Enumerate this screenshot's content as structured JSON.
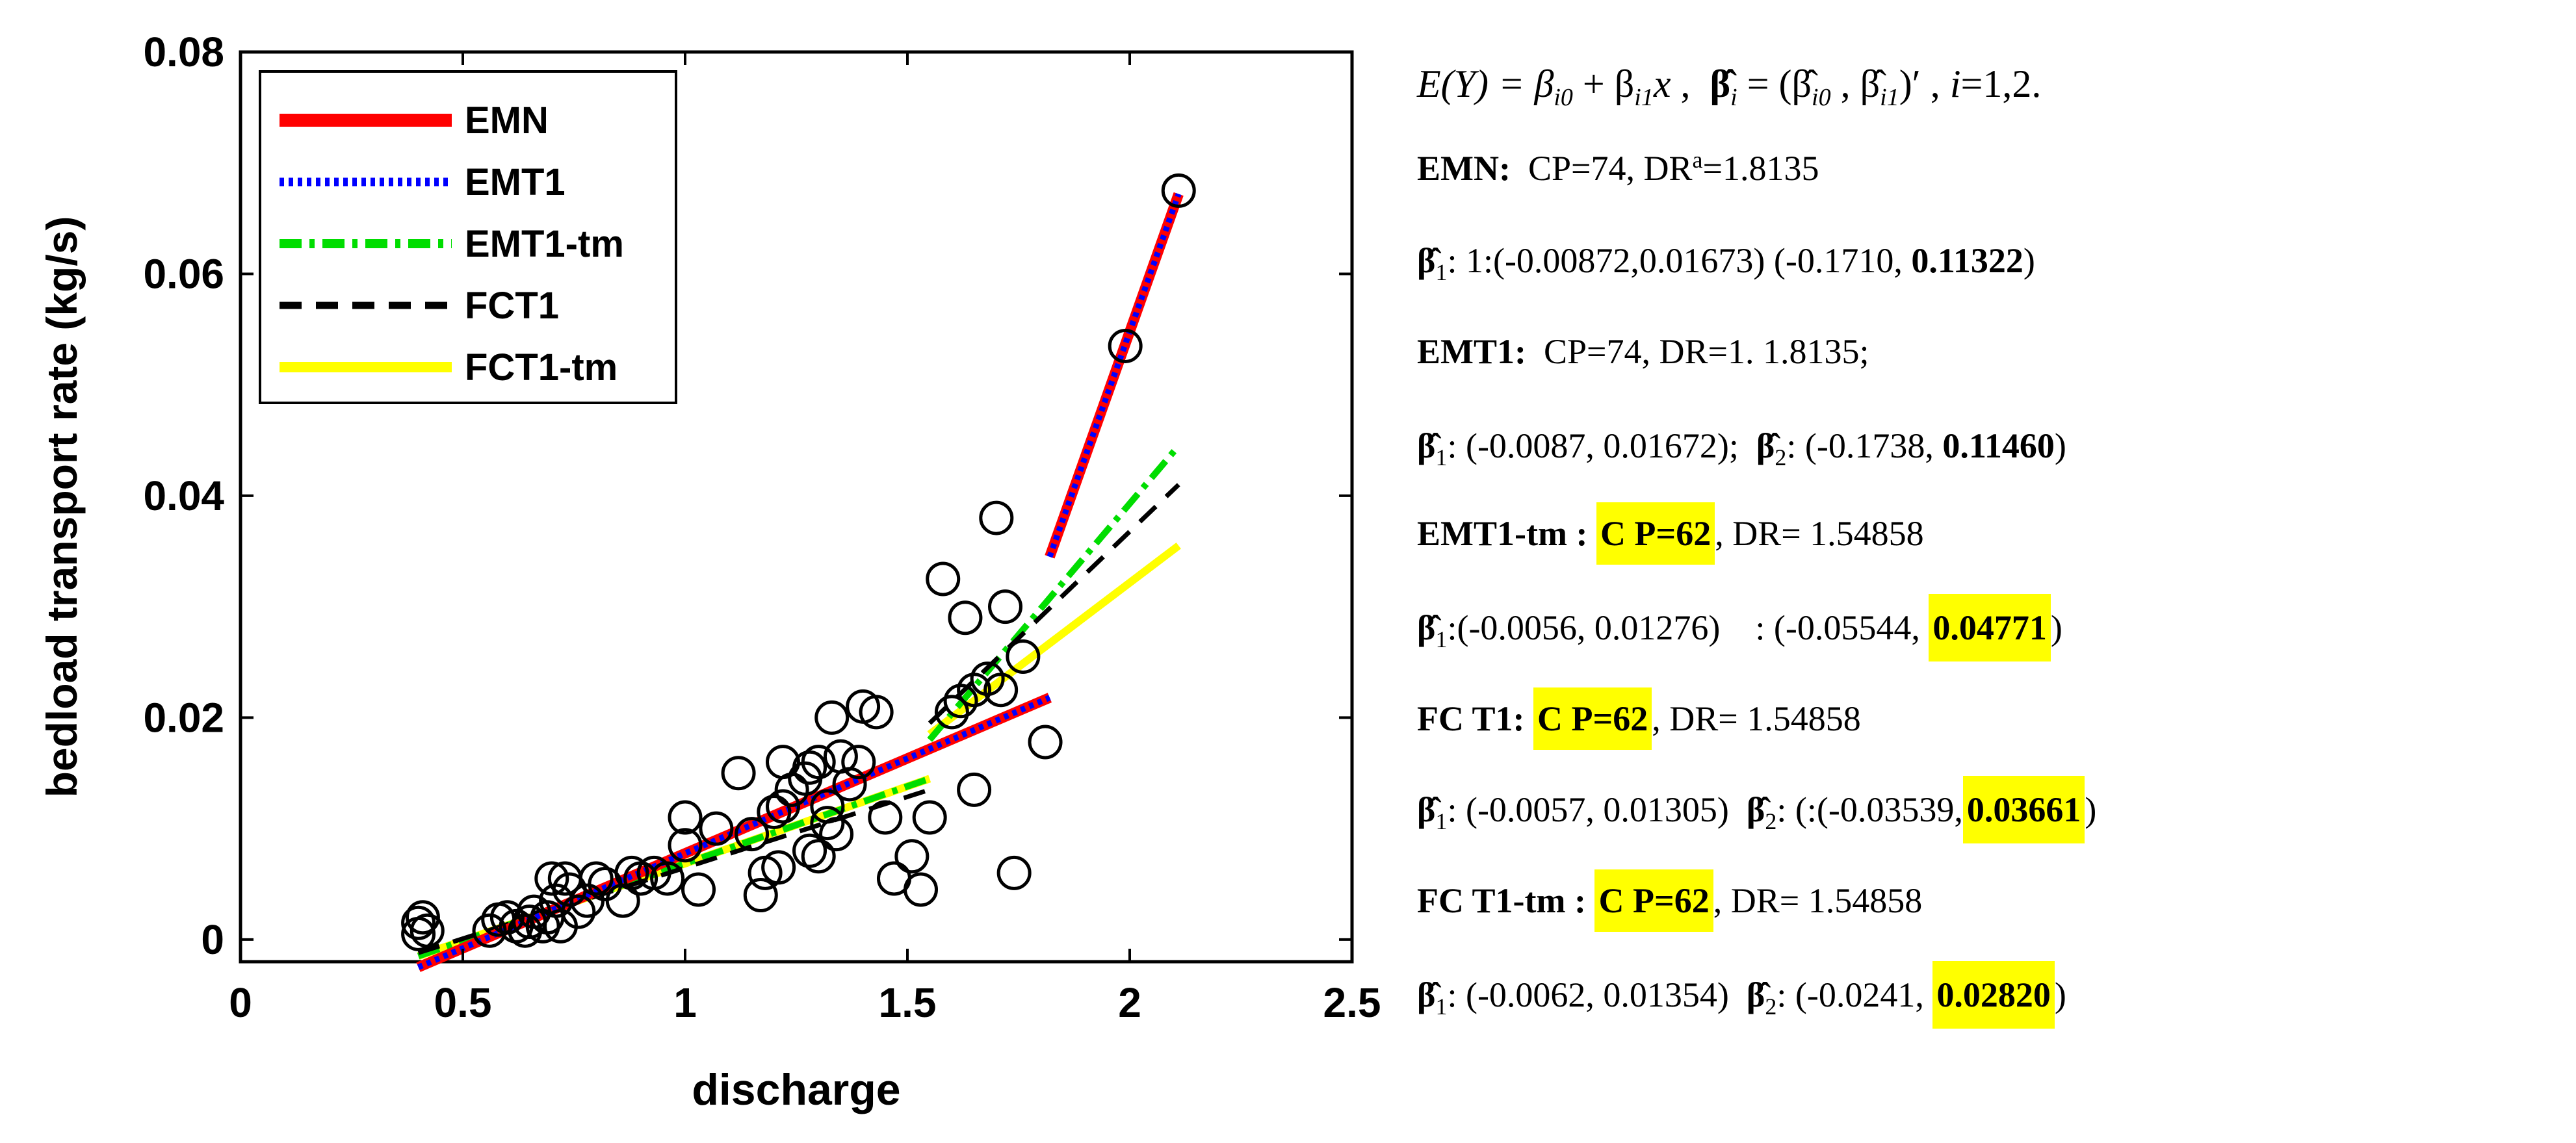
{
  "chart_data": {
    "type": "scatter",
    "xlabel": "discharge",
    "ylabel": "bedload transport rate (kg/s)",
    "xlim": [
      0,
      2.5
    ],
    "ylim": [
      -0.002,
      0.08
    ],
    "xticks": [
      "0",
      "0.5",
      "1",
      "1.5",
      "2",
      "2.5"
    ],
    "yticks": [
      "0",
      "0.02",
      "0.04",
      "0.06",
      "0.08"
    ],
    "legend": [
      "EMN",
      "EMT1",
      "EMT1-tm",
      "FCT1",
      "FCT1-tm"
    ],
    "points": [
      [
        0.4,
        0.0005
      ],
      [
        0.4,
        0.0015
      ],
      [
        0.41,
        0.002
      ],
      [
        0.42,
        0.0008
      ],
      [
        0.56,
        0.0008
      ],
      [
        0.58,
        0.0018
      ],
      [
        0.6,
        0.002
      ],
      [
        0.62,
        0.0012
      ],
      [
        0.64,
        0.0008
      ],
      [
        0.65,
        0.0016
      ],
      [
        0.66,
        0.0025
      ],
      [
        0.68,
        0.0012
      ],
      [
        0.69,
        0.002
      ],
      [
        0.7,
        0.0055
      ],
      [
        0.71,
        0.0035
      ],
      [
        0.72,
        0.0012
      ],
      [
        0.73,
        0.0055
      ],
      [
        0.74,
        0.0045
      ],
      [
        0.76,
        0.0025
      ],
      [
        0.78,
        0.0035
      ],
      [
        0.8,
        0.0055
      ],
      [
        0.82,
        0.005
      ],
      [
        0.86,
        0.0035
      ],
      [
        0.88,
        0.006
      ],
      [
        0.9,
        0.0055
      ],
      [
        0.93,
        0.006
      ],
      [
        0.96,
        0.0055
      ],
      [
        1.0,
        0.0085
      ],
      [
        1.0,
        0.011
      ],
      [
        1.03,
        0.0045
      ],
      [
        1.07,
        0.01
      ],
      [
        1.12,
        0.015
      ],
      [
        1.15,
        0.0095
      ],
      [
        1.17,
        0.004
      ],
      [
        1.18,
        0.006
      ],
      [
        1.2,
        0.0115
      ],
      [
        1.21,
        0.0065
      ],
      [
        1.22,
        0.012
      ],
      [
        1.22,
        0.016
      ],
      [
        1.24,
        0.0135
      ],
      [
        1.27,
        0.0145
      ],
      [
        1.28,
        0.008
      ],
      [
        1.28,
        0.0155
      ],
      [
        1.3,
        0.0075
      ],
      [
        1.3,
        0.016
      ],
      [
        1.32,
        0.0105
      ],
      [
        1.32,
        0.012
      ],
      [
        1.33,
        0.02
      ],
      [
        1.34,
        0.0095
      ],
      [
        1.35,
        0.0165
      ],
      [
        1.37,
        0.014
      ],
      [
        1.39,
        0.016
      ],
      [
        1.4,
        0.021
      ],
      [
        1.43,
        0.0205
      ],
      [
        1.45,
        0.011
      ],
      [
        1.47,
        0.0055
      ],
      [
        1.51,
        0.0075
      ],
      [
        1.53,
        0.0045
      ],
      [
        1.55,
        0.011
      ],
      [
        1.58,
        0.0325
      ],
      [
        1.6,
        0.0205
      ],
      [
        1.62,
        0.0215
      ],
      [
        1.63,
        0.029
      ],
      [
        1.65,
        0.0135
      ],
      [
        1.65,
        0.0225
      ],
      [
        1.68,
        0.0235
      ],
      [
        1.7,
        0.038
      ],
      [
        1.71,
        0.0225
      ],
      [
        1.72,
        0.03
      ],
      [
        1.74,
        0.006
      ],
      [
        1.76,
        0.0255
      ],
      [
        1.81,
        0.0178
      ],
      [
        1.99,
        0.0535
      ],
      [
        2.11,
        0.0675
      ]
    ],
    "series": [
      {
        "name": "EMN",
        "color": "#ff0000",
        "style": "solid",
        "segments": [
          [
            [
              0.4,
              -0.0025
            ],
            [
              1.82,
              0.0218
            ]
          ],
          [
            [
              1.82,
              0.0345
            ],
            [
              2.11,
              0.0672
            ]
          ]
        ]
      },
      {
        "name": "EMT1",
        "color": "#0000ff",
        "style": "dotted",
        "segments": [
          [
            [
              0.4,
              -0.0025
            ],
            [
              1.82,
              0.0218
            ]
          ],
          [
            [
              1.82,
              0.0345
            ],
            [
              2.11,
              0.0672
            ]
          ]
        ]
      },
      {
        "name": "EMT1-tm",
        "color": "#00dd00",
        "style": "dashdot",
        "segments": [
          [
            [
              0.4,
              -0.0015
            ],
            [
              1.55,
              0.0145
            ]
          ],
          [
            [
              1.55,
              0.018
            ],
            [
              2.11,
              0.0445
            ]
          ]
        ]
      },
      {
        "name": "FCT1",
        "color": "#000000",
        "style": "dashed",
        "segments": [
          [
            [
              0.4,
              -0.0012
            ],
            [
              1.55,
              0.0135
            ]
          ],
          [
            [
              1.55,
              0.0195
            ],
            [
              2.11,
              0.041
            ]
          ]
        ]
      },
      {
        "name": "FCT1-tm",
        "color": "#ffff00",
        "style": "solid",
        "segments": [
          [
            [
              0.4,
              -0.0015
            ],
            [
              1.55,
              0.0145
            ]
          ],
          [
            [
              1.55,
              0.0185
            ],
            [
              2.11,
              0.0355
            ]
          ]
        ]
      }
    ]
  },
  "equations": {
    "model": "E(Y) = β",
    "emn_label": "EMN:",
    "emn_stats": "CP=74, DR",
    "emn_sup": "a",
    "emn_dr": "=1.8135",
    "emn_b1": ": 1:(-0.00872,0.01673) (-0.1710,",
    "emn_b1_bold": "0.11322",
    "emt1_label": "EMT1:",
    "emt1_stats": "CP=74, DR=1. 1.8135;",
    "emt1_b1": ": (-0.0087, 0.01672);",
    "emt1_b2": ": (-0.1738,",
    "emt1_b2_bold": "0.11460",
    "emt1tm_label": "EMT1-tm :",
    "emt1tm_cp": "C P=62",
    "emt1tm_dr": ", DR= 1.54858",
    "emt1tm_b1": ":(-0.0056, 0.01276)    : (-0.05544,",
    "emt1tm_b1_bold": "0.04771",
    "fct1_label": "FC T1:",
    "fct1_cp": "C P=62",
    "fct1_dr": ", DR= 1.54858",
    "fct1_b1": ": (-0.0057, 0.01305)",
    "fct1_b2": ": (:(-0.03539,",
    "fct1_b2_bold": "0.03661",
    "fct1tm_label": "FC T1-tm :",
    "fct1tm_cp": "C P=62",
    "fct1tm_dr": ", DR= 1.54858",
    "fct1tm_b1": ": (-0.0062, 0.01354)",
    "fct1tm_b2": ": (-0.0241,",
    "fct1tm_b2_bold": "0.02820"
  }
}
